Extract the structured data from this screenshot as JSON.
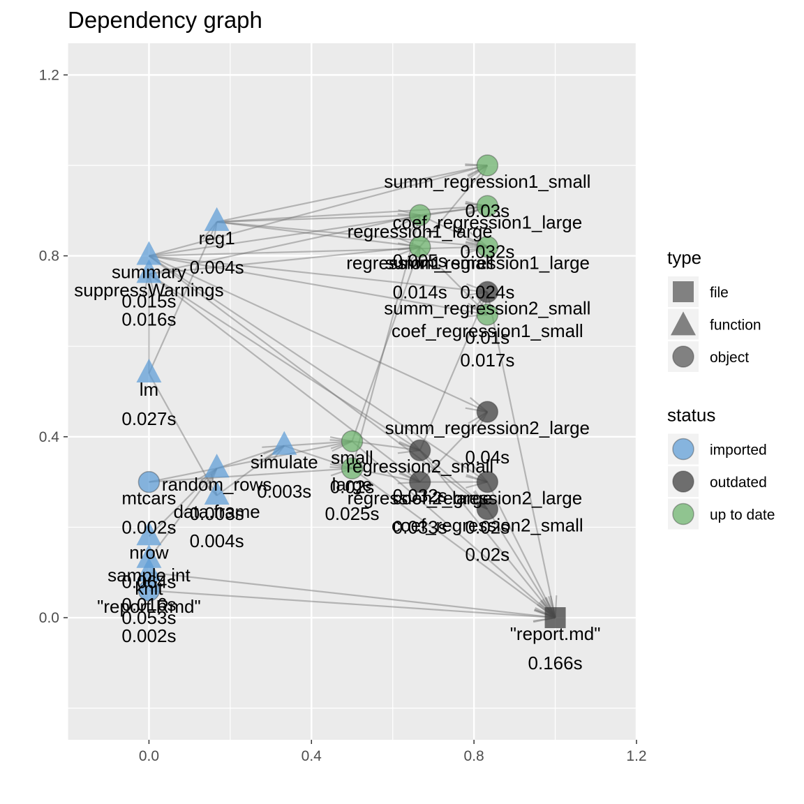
{
  "chart_data": {
    "type": "scatter",
    "title": "Dependency graph",
    "xlabel": "",
    "ylabel": "",
    "xlim": [
      -0.2,
      1.2
    ],
    "ylim": [
      -0.27,
      1.27
    ],
    "x_ticks": [
      "0.0",
      "0.4",
      "0.8",
      "1.2"
    ],
    "y_ticks": [
      "0.0",
      "0.4",
      "0.8",
      "1.2"
    ],
    "x_tick_values": [
      0,
      0.4,
      0.8,
      1.2
    ],
    "y_tick_values": [
      0,
      0.4,
      0.8,
      1.2
    ],
    "grid": true,
    "legend_position": "right",
    "legends": [
      {
        "title": "type",
        "entries": [
          {
            "label": "file",
            "shape": "square"
          },
          {
            "label": "function",
            "shape": "triangle"
          },
          {
            "label": "object",
            "shape": "circle"
          }
        ]
      },
      {
        "title": "status",
        "entries": [
          {
            "label": "imported",
            "color": "#5b9bd5"
          },
          {
            "label": "outdated",
            "color": "#3a3a3a"
          },
          {
            "label": "up to date",
            "color": "#6ab26a"
          }
        ]
      }
    ],
    "colors": {
      "imported": "#5b9bd5",
      "outdated": "#3a3a3a",
      "up to date": "#6ab26a",
      "edge": "#6e6e6e",
      "panel": "#ebebeb",
      "grid": "#ffffff"
    },
    "nodes": [
      {
        "id": "reg1",
        "label": "reg1",
        "time": "0.004s",
        "x": 0.167,
        "y": 0.875,
        "shape": "triangle",
        "status": "imported"
      },
      {
        "id": "summary",
        "label": "summary",
        "time": "0.015s",
        "x": 0.0,
        "y": 0.8,
        "shape": "triangle",
        "status": "imported"
      },
      {
        "id": "suppressWarnings",
        "label": "suppressWarnings",
        "time": "0.016s",
        "x": 0.0,
        "y": 0.76,
        "shape": "triangle",
        "status": "imported"
      },
      {
        "id": "lm",
        "label": "lm",
        "time": "0.027s",
        "x": 0.0,
        "y": 0.54,
        "shape": "triangle",
        "status": "imported"
      },
      {
        "id": "random_rows",
        "label": "random_rows",
        "time": "0.003s",
        "x": 0.167,
        "y": 0.33,
        "shape": "triangle",
        "status": "imported"
      },
      {
        "id": "simulate",
        "label": "simulate",
        "time": "0.003s",
        "x": 0.333,
        "y": 0.38,
        "shape": "triangle",
        "status": "imported"
      },
      {
        "id": "data.frame",
        "label": "data.frame",
        "time": "0.004s",
        "x": 0.167,
        "y": 0.27,
        "shape": "triangle",
        "status": "imported"
      },
      {
        "id": "sample.int",
        "label": "sample.int",
        "time": "0.016s",
        "x": 0.0,
        "y": 0.13,
        "shape": "triangle",
        "status": "imported"
      },
      {
        "id": "mtcars",
        "label": "mtcars",
        "time": "0.002s",
        "x": 0.0,
        "y": 0.3,
        "shape": "circle",
        "status": "imported"
      },
      {
        "id": "nrow",
        "label": "nrow",
        "time": "0.064s",
        "x": 0.0,
        "y": 0.18,
        "shape": "triangle",
        "status": "imported"
      },
      {
        "id": "knit",
        "label": "knit",
        "time": "0.053s",
        "x": 0.0,
        "y": 0.1,
        "shape": "triangle",
        "status": "imported"
      },
      {
        "id": "report.Rmd",
        "label": "\"report.Rmd\"",
        "time": "0.002s",
        "x": 0.0,
        "y": 0.06,
        "shape": "circle",
        "status": "imported"
      },
      {
        "id": "summ_regression1_small",
        "label": "summ_regression1_small",
        "time": "0.03s",
        "x": 0.833,
        "y": 1.0,
        "shape": "circle",
        "status": "up to date"
      },
      {
        "id": "coef_regression1_large",
        "label": "coef_regression1_large",
        "time": "0.032s",
        "x": 0.833,
        "y": 0.91,
        "shape": "circle",
        "status": "up to date"
      },
      {
        "id": "regression1_large",
        "label": "regression1_large",
        "time": "0.005s",
        "x": 0.667,
        "y": 0.89,
        "shape": "circle",
        "status": "up to date"
      },
      {
        "id": "regression1_small",
        "label": "regression1_small",
        "time": "0.014s",
        "x": 0.667,
        "y": 0.82,
        "shape": "circle",
        "status": "up to date"
      },
      {
        "id": "summ_regression1_large",
        "label": "summ_regression1_large",
        "time": "0.024s",
        "x": 0.833,
        "y": 0.82,
        "shape": "circle",
        "status": "up to date"
      },
      {
        "id": "summ_regression2_small",
        "label": "summ_regression2_small",
        "time": "0.01s",
        "x": 0.833,
        "y": 0.72,
        "shape": "circle",
        "status": "outdated"
      },
      {
        "id": "coef_regression1_small",
        "label": "coef_regression1_small",
        "time": "0.017s",
        "x": 0.833,
        "y": 0.67,
        "shape": "circle",
        "status": "up to date"
      },
      {
        "id": "summ_regression2_large",
        "label": "summ_regression2_large",
        "time": "0.04s",
        "x": 0.833,
        "y": 0.455,
        "shape": "circle",
        "status": "outdated"
      },
      {
        "id": "small",
        "label": "small",
        "time": "0.02s",
        "x": 0.5,
        "y": 0.39,
        "shape": "circle",
        "status": "up to date"
      },
      {
        "id": "large",
        "label": "large",
        "time": "0.025s",
        "x": 0.5,
        "y": 0.33,
        "shape": "circle",
        "status": "up to date"
      },
      {
        "id": "regression2_small",
        "label": "regression2_small",
        "time": "0.032s",
        "x": 0.667,
        "y": 0.37,
        "shape": "circle",
        "status": "outdated"
      },
      {
        "id": "regression2_large",
        "label": "regression2_large",
        "time": "0.033s",
        "x": 0.667,
        "y": 0.3,
        "shape": "circle",
        "status": "outdated"
      },
      {
        "id": "coef_regression2_large",
        "label": "coef_regression2_large",
        "time": "0.02s",
        "x": 0.833,
        "y": 0.3,
        "shape": "circle",
        "status": "outdated"
      },
      {
        "id": "coef_regression2_small",
        "label": "coef_regression2_small",
        "time": "0.02s",
        "x": 0.833,
        "y": 0.24,
        "shape": "circle",
        "status": "outdated"
      },
      {
        "id": "report.md",
        "label": "\"report.md\"",
        "time": "0.166s",
        "x": 1.0,
        "y": 0.0,
        "shape": "square",
        "status": "outdated"
      }
    ],
    "edges": [
      [
        "reg1",
        "summ_regression1_small"
      ],
      [
        "reg1",
        "coef_regression1_large"
      ],
      [
        "reg1",
        "regression1_large"
      ],
      [
        "reg1",
        "regression1_small"
      ],
      [
        "reg1",
        "summ_regression1_large"
      ],
      [
        "summary",
        "summ_regression1_small"
      ],
      [
        "summary",
        "summ_regression1_large"
      ],
      [
        "summary",
        "summ_regression2_small"
      ],
      [
        "summary",
        "summ_regression2_large"
      ],
      [
        "summary",
        "coef_regression1_small"
      ],
      [
        "summary",
        "coef_regression1_large"
      ],
      [
        "summary",
        "coef_regression2_large"
      ],
      [
        "summary",
        "coef_regression2_small"
      ],
      [
        "suppressWarnings",
        "regression1_large"
      ],
      [
        "suppressWarnings",
        "regression1_small"
      ],
      [
        "suppressWarnings",
        "regression2_small"
      ],
      [
        "suppressWarnings",
        "regression2_large"
      ],
      [
        "lm",
        "suppressWarnings"
      ],
      [
        "lm",
        "reg1"
      ],
      [
        "lm",
        "data.frame"
      ],
      [
        "random_rows",
        "simulate"
      ],
      [
        "data.frame",
        "simulate"
      ],
      [
        "nrow",
        "random_rows"
      ],
      [
        "sample.int",
        "random_rows"
      ],
      [
        "mtcars",
        "small"
      ],
      [
        "mtcars",
        "large"
      ],
      [
        "simulate",
        "small"
      ],
      [
        "simulate",
        "large"
      ],
      [
        "small",
        "regression1_small"
      ],
      [
        "small",
        "regression2_small"
      ],
      [
        "large",
        "regression1_large"
      ],
      [
        "large",
        "regression2_large"
      ],
      [
        "regression1_small",
        "summ_regression1_small"
      ],
      [
        "regression1_small",
        "coef_regression1_small"
      ],
      [
        "regression1_large",
        "summ_regression1_large"
      ],
      [
        "regression1_large",
        "coef_regression1_large"
      ],
      [
        "regression2_small",
        "summ_regression2_small"
      ],
      [
        "regression2_small",
        "coef_regression2_small"
      ],
      [
        "regression2_large",
        "summ_regression2_large"
      ],
      [
        "regression2_large",
        "coef_regression2_large"
      ],
      [
        "knit",
        "report.md"
      ],
      [
        "report.Rmd",
        "report.md"
      ],
      [
        "small",
        "report.md"
      ],
      [
        "large",
        "report.md"
      ],
      [
        "coef_regression2_small",
        "report.md"
      ],
      [
        "summ_regression2_small",
        "report.md"
      ],
      [
        "coef_regression2_large",
        "report.md"
      ],
      [
        "regression2_small",
        "report.md"
      ]
    ]
  }
}
